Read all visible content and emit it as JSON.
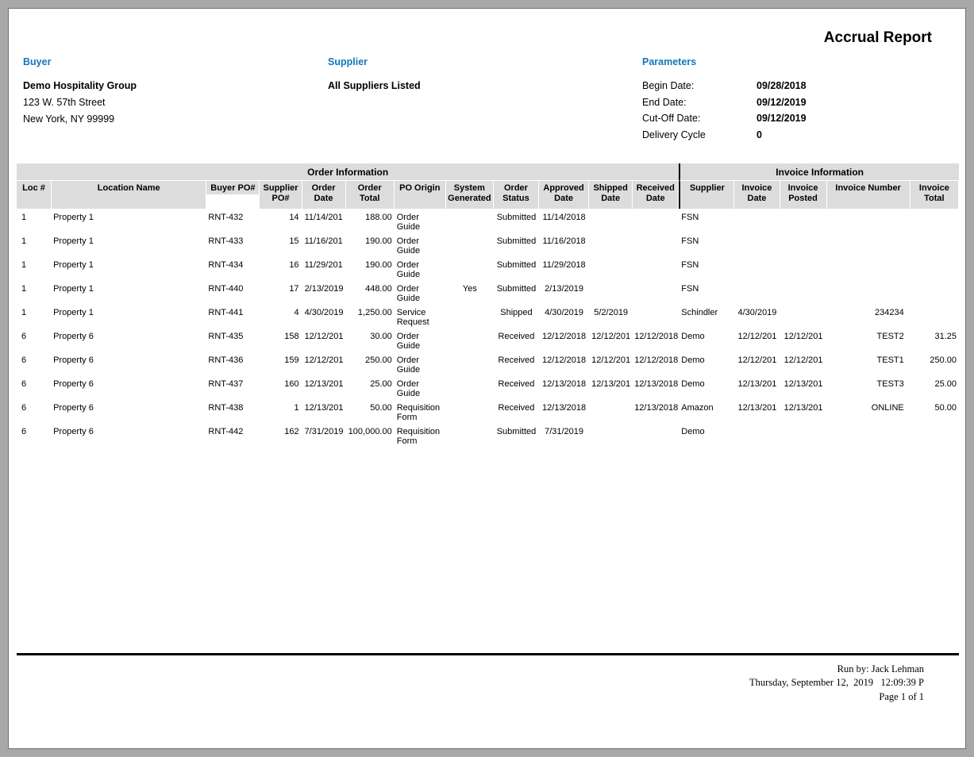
{
  "report": {
    "title": "Accrual Report",
    "accent_color": "#1375BC",
    "buyer": {
      "label": "Buyer",
      "name": "Demo Hospitality Group",
      "address_line1": "123 W. 57th Street",
      "address_line2": "New York, NY 99999"
    },
    "supplier": {
      "label": "Supplier",
      "value": "All Suppliers Listed"
    },
    "parameters": {
      "label": "Parameters",
      "rows": [
        {
          "label": "Begin Date:",
          "value": "09/28/2018"
        },
        {
          "label": "End Date:",
          "value": "09/12/2019"
        },
        {
          "label": "Cut-Off Date:",
          "value": "09/12/2019"
        },
        {
          "label": "Delivery Cycle",
          "value": "0"
        }
      ]
    }
  },
  "table": {
    "groups": [
      {
        "label": "Order Information",
        "span": 12
      },
      {
        "label": "Invoice Information",
        "span": 5
      }
    ],
    "columns": [
      {
        "key": "loc",
        "label": "Loc #"
      },
      {
        "key": "location_name",
        "label": "Location Name"
      },
      {
        "key": "buyer_po",
        "label": "Buyer PO#"
      },
      {
        "key": "supplier_po",
        "label": "Supplier PO#"
      },
      {
        "key": "order_date",
        "label": "Order Date"
      },
      {
        "key": "order_total",
        "label": "Order Total"
      },
      {
        "key": "po_origin",
        "label": "PO Origin"
      },
      {
        "key": "system_generated",
        "label": "System Generated"
      },
      {
        "key": "order_status",
        "label": "Order Status"
      },
      {
        "key": "approved_date",
        "label": "Approved Date"
      },
      {
        "key": "shipped_date",
        "label": "Shipped Date"
      },
      {
        "key": "received_date",
        "label": "Received Date"
      },
      {
        "key": "supplier",
        "label": "Supplier"
      },
      {
        "key": "invoice_date",
        "label": "Invoice Date"
      },
      {
        "key": "invoice_posted",
        "label": "Invoice Posted"
      },
      {
        "key": "invoice_number",
        "label": "Invoice Number"
      },
      {
        "key": "invoice_total",
        "label": "Invoice Total"
      }
    ],
    "rows": [
      {
        "loc": "1",
        "location_name": "Property 1",
        "buyer_po": "RNT-432",
        "supplier_po": "14",
        "order_date": "11/14/201",
        "order_total": "188.00",
        "po_origin": "Order Guide",
        "system_generated": "",
        "order_status": "Submitted",
        "approved_date": "11/14/2018",
        "shipped_date": "",
        "received_date": "",
        "supplier": "FSN",
        "invoice_date": "",
        "invoice_posted": "",
        "invoice_number": "",
        "invoice_total": ""
      },
      {
        "loc": "1",
        "location_name": "Property 1",
        "buyer_po": "RNT-433",
        "supplier_po": "15",
        "order_date": "11/16/201",
        "order_total": "190.00",
        "po_origin": "Order Guide",
        "system_generated": "",
        "order_status": "Submitted",
        "approved_date": "11/16/2018",
        "shipped_date": "",
        "received_date": "",
        "supplier": "FSN",
        "invoice_date": "",
        "invoice_posted": "",
        "invoice_number": "",
        "invoice_total": ""
      },
      {
        "loc": "1",
        "location_name": "Property 1",
        "buyer_po": "RNT-434",
        "supplier_po": "16",
        "order_date": "11/29/201",
        "order_total": "190.00",
        "po_origin": "Order Guide",
        "system_generated": "",
        "order_status": "Submitted",
        "approved_date": "11/29/2018",
        "shipped_date": "",
        "received_date": "",
        "supplier": "FSN",
        "invoice_date": "",
        "invoice_posted": "",
        "invoice_number": "",
        "invoice_total": ""
      },
      {
        "loc": "1",
        "location_name": "Property 1",
        "buyer_po": "RNT-440",
        "supplier_po": "17",
        "order_date": "2/13/2019",
        "order_total": "448.00",
        "po_origin": "Order Guide",
        "system_generated": "Yes",
        "order_status": "Submitted",
        "approved_date": "2/13/2019",
        "shipped_date": "",
        "received_date": "",
        "supplier": "FSN",
        "invoice_date": "",
        "invoice_posted": "",
        "invoice_number": "",
        "invoice_total": ""
      },
      {
        "loc": "1",
        "location_name": "Property 1",
        "buyer_po": "RNT-441",
        "supplier_po": "4",
        "order_date": "4/30/2019",
        "order_total": "1,250.00",
        "po_origin": "Service Request",
        "system_generated": "",
        "order_status": "Shipped",
        "approved_date": "4/30/2019",
        "shipped_date": "5/2/2019",
        "received_date": "",
        "supplier": "Schindler",
        "invoice_date": "4/30/2019",
        "invoice_posted": "",
        "invoice_number": "234234",
        "invoice_total": ""
      },
      {
        "loc": "6",
        "location_name": "Property 6",
        "buyer_po": "RNT-435",
        "supplier_po": "158",
        "order_date": "12/12/201",
        "order_total": "30.00",
        "po_origin": "Order Guide",
        "system_generated": "",
        "order_status": "Received",
        "approved_date": "12/12/2018",
        "shipped_date": "12/12/201",
        "received_date": "12/12/2018",
        "supplier": "Demo",
        "invoice_date": "12/12/201",
        "invoice_posted": "12/12/201",
        "invoice_number": "TEST2",
        "invoice_total": "31.25"
      },
      {
        "loc": "6",
        "location_name": "Property 6",
        "buyer_po": "RNT-436",
        "supplier_po": "159",
        "order_date": "12/12/201",
        "order_total": "250.00",
        "po_origin": "Order Guide",
        "system_generated": "",
        "order_status": "Received",
        "approved_date": "12/12/2018",
        "shipped_date": "12/12/201",
        "received_date": "12/12/2018",
        "supplier": "Demo",
        "invoice_date": "12/12/201",
        "invoice_posted": "12/12/201",
        "invoice_number": "TEST1",
        "invoice_total": "250.00"
      },
      {
        "loc": "6",
        "location_name": "Property 6",
        "buyer_po": "RNT-437",
        "supplier_po": "160",
        "order_date": "12/13/201",
        "order_total": "25.00",
        "po_origin": "Order Guide",
        "system_generated": "",
        "order_status": "Received",
        "approved_date": "12/13/2018",
        "shipped_date": "12/13/201",
        "received_date": "12/13/2018",
        "supplier": "Demo",
        "invoice_date": "12/13/201",
        "invoice_posted": "12/13/201",
        "invoice_number": "TEST3",
        "invoice_total": "25.00"
      },
      {
        "loc": "6",
        "location_name": "Property 6",
        "buyer_po": "RNT-438",
        "supplier_po": "1",
        "order_date": "12/13/201",
        "order_total": "50.00",
        "po_origin": "Requisition Form",
        "system_generated": "",
        "order_status": "Received",
        "approved_date": "12/13/2018",
        "shipped_date": "",
        "received_date": "12/13/2018",
        "supplier": "Amazon",
        "invoice_date": "12/13/201",
        "invoice_posted": "12/13/201",
        "invoice_number": "ONLINE",
        "invoice_total": "50.00"
      },
      {
        "loc": "6",
        "location_name": "Property 6",
        "buyer_po": "RNT-442",
        "supplier_po": "162",
        "order_date": "7/31/2019",
        "order_total": "100,000.00",
        "po_origin": "Requisition Form",
        "system_generated": "",
        "order_status": "Submitted",
        "approved_date": "7/31/2019",
        "shipped_date": "",
        "received_date": "",
        "supplier": "Demo",
        "invoice_date": "",
        "invoice_posted": "",
        "invoice_number": "",
        "invoice_total": ""
      }
    ]
  },
  "footer": {
    "run_by": "Run by: Jack Lehman",
    "datetime": "Thursday, September 12,  2019   12:09:39 P",
    "page": "Page 1 of 1"
  }
}
